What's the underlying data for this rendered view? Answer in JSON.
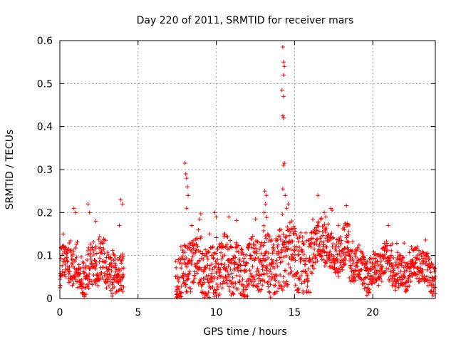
{
  "chart_data": {
    "type": "scatter",
    "title": "Day 220 of 2011, SRMTID for receiver mars",
    "xlabel": "GPS time / hours",
    "ylabel": "SRMTID / TECUs",
    "xlim": [
      0,
      24
    ],
    "ylim": [
      0,
      0.6
    ],
    "xticks": [
      0,
      5,
      10,
      15,
      20
    ],
    "xtick_labels": [
      "0",
      "5",
      "10",
      "15",
      "20"
    ],
    "yticks": [
      0,
      0.1,
      0.2,
      0.3,
      0.4,
      0.5,
      0.6
    ],
    "ytick_labels": [
      "0",
      "0.1",
      "0.2",
      "0.3",
      "0.4",
      "0.5",
      "0.6"
    ],
    "grid": true,
    "marker": "plus",
    "color": "#ff0000",
    "series": [
      {
        "name": "SRMTID",
        "segments": [
          {
            "x_start": 0.0,
            "x_end": 4.1,
            "base": 0.07,
            "spread": 0.05
          },
          {
            "x_start": 7.4,
            "x_end": 13.0,
            "base": 0.07,
            "spread": 0.06
          },
          {
            "x_start": 13.0,
            "x_end": 16.0,
            "base": 0.09,
            "spread": 0.07
          },
          {
            "x_start": 16.0,
            "x_end": 18.5,
            "base": 0.12,
            "spread": 0.05
          },
          {
            "x_start": 18.5,
            "x_end": 24.0,
            "base": 0.07,
            "spread": 0.04
          }
        ],
        "peaks": [
          [
            0.9,
            0.21
          ],
          [
            1.0,
            0.2
          ],
          [
            1.8,
            0.22
          ],
          [
            1.9,
            0.2
          ],
          [
            2.3,
            0.18
          ],
          [
            3.9,
            0.23
          ],
          [
            4.0,
            0.22
          ],
          [
            3.8,
            0.17
          ],
          [
            8.0,
            0.315
          ],
          [
            8.05,
            0.29
          ],
          [
            8.1,
            0.28
          ],
          [
            8.15,
            0.26
          ],
          [
            8.2,
            0.24
          ],
          [
            8.1,
            0.21
          ],
          [
            9.9,
            0.2
          ],
          [
            10.0,
            0.19
          ],
          [
            10.8,
            0.19
          ],
          [
            13.1,
            0.25
          ],
          [
            13.2,
            0.24
          ],
          [
            13.15,
            0.22
          ],
          [
            13.05,
            0.2
          ],
          [
            14.25,
            0.585
          ],
          [
            14.3,
            0.55
          ],
          [
            14.35,
            0.54
          ],
          [
            14.3,
            0.52
          ],
          [
            14.2,
            0.485
          ],
          [
            14.3,
            0.47
          ],
          [
            14.25,
            0.425
          ],
          [
            14.3,
            0.42
          ],
          [
            14.35,
            0.315
          ],
          [
            14.3,
            0.31
          ],
          [
            14.25,
            0.255
          ],
          [
            14.4,
            0.24
          ],
          [
            14.6,
            0.22
          ],
          [
            14.5,
            0.21
          ],
          [
            16.9,
            0.2
          ],
          [
            17.0,
            0.19
          ],
          [
            17.8,
            0.17
          ],
          [
            21.0,
            0.17
          ]
        ]
      }
    ]
  }
}
